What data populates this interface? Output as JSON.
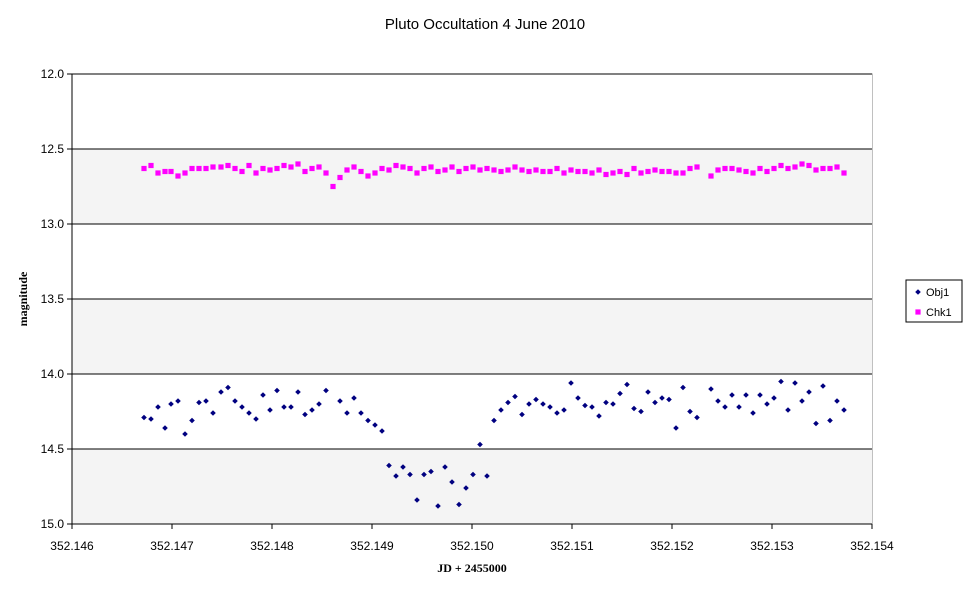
{
  "chart_data": {
    "type": "scatter",
    "title": "Pluto Occultation 4 June 2010",
    "xlabel": "JD + 2455000",
    "ylabel": "magnitude",
    "xlim": [
      352.146,
      352.154
    ],
    "ylim": [
      12.0,
      15.0
    ],
    "y_inverted": true,
    "x_ticks": [
      "352.146",
      "352.147",
      "352.148",
      "352.149",
      "352.150",
      "352.151",
      "352.152",
      "352.153",
      "352.154"
    ],
    "x_tick_values": [
      352.146,
      352.147,
      352.148,
      352.149,
      352.15,
      352.151,
      352.152,
      352.153,
      352.154
    ],
    "y_ticks": [
      "12.0",
      "12.5",
      "13.0",
      "13.5",
      "14.0",
      "14.5",
      "15.0"
    ],
    "y_tick_values": [
      12.0,
      12.5,
      13.0,
      13.5,
      14.0,
      14.5,
      15.0
    ],
    "grid": "horizontal",
    "legend_position": "right",
    "series": [
      {
        "name": "Obj1",
        "color": "#000080",
        "marker": "diamond",
        "points": [
          [
            352.14672,
            14.29
          ],
          [
            352.14679,
            14.3
          ],
          [
            352.14686,
            14.22
          ],
          [
            352.14693,
            14.36
          ],
          [
            352.14699,
            14.2
          ],
          [
            352.14706,
            14.18
          ],
          [
            352.14713,
            14.4
          ],
          [
            352.1472,
            14.31
          ],
          [
            352.14727,
            14.19
          ],
          [
            352.14734,
            14.18
          ],
          [
            352.14741,
            14.26
          ],
          [
            352.14749,
            14.12
          ],
          [
            352.14756,
            14.09
          ],
          [
            352.14763,
            14.18
          ],
          [
            352.1477,
            14.22
          ],
          [
            352.14777,
            14.26
          ],
          [
            352.14784,
            14.3
          ],
          [
            352.14791,
            14.14
          ],
          [
            352.14798,
            14.24
          ],
          [
            352.14805,
            14.11
          ],
          [
            352.14812,
            14.22
          ],
          [
            352.14819,
            14.22
          ],
          [
            352.14826,
            14.12
          ],
          [
            352.14833,
            14.27
          ],
          [
            352.1484,
            14.24
          ],
          [
            352.14847,
            14.2
          ],
          [
            352.14854,
            14.11
          ],
          [
            352.14868,
            14.18
          ],
          [
            352.14875,
            14.26
          ],
          [
            352.14882,
            14.16
          ],
          [
            352.14889,
            14.26
          ],
          [
            352.14896,
            14.31
          ],
          [
            352.14903,
            14.34
          ],
          [
            352.1491,
            14.38
          ],
          [
            352.14917,
            14.61
          ],
          [
            352.14924,
            14.68
          ],
          [
            352.14931,
            14.62
          ],
          [
            352.14938,
            14.67
          ],
          [
            352.14945,
            14.84
          ],
          [
            352.14952,
            14.67
          ],
          [
            352.14959,
            14.65
          ],
          [
            352.14966,
            14.88
          ],
          [
            352.14973,
            14.62
          ],
          [
            352.1498,
            14.72
          ],
          [
            352.14987,
            14.87
          ],
          [
            352.14994,
            14.76
          ],
          [
            352.15001,
            14.67
          ],
          [
            352.15008,
            14.47
          ],
          [
            352.15015,
            14.68
          ],
          [
            352.15022,
            14.31
          ],
          [
            352.15029,
            14.24
          ],
          [
            352.15036,
            14.19
          ],
          [
            352.15043,
            14.15
          ],
          [
            352.1505,
            14.27
          ],
          [
            352.15057,
            14.2
          ],
          [
            352.15064,
            14.17
          ],
          [
            352.15071,
            14.2
          ],
          [
            352.15078,
            14.22
          ],
          [
            352.15085,
            14.26
          ],
          [
            352.15092,
            14.24
          ],
          [
            352.15099,
            14.06
          ],
          [
            352.15106,
            14.16
          ],
          [
            352.15113,
            14.21
          ],
          [
            352.1512,
            14.22
          ],
          [
            352.15127,
            14.28
          ],
          [
            352.15134,
            14.19
          ],
          [
            352.15141,
            14.2
          ],
          [
            352.15148,
            14.13
          ],
          [
            352.15155,
            14.07
          ],
          [
            352.15162,
            14.23
          ],
          [
            352.15169,
            14.25
          ],
          [
            352.15176,
            14.12
          ],
          [
            352.15183,
            14.19
          ],
          [
            352.1519,
            14.16
          ],
          [
            352.15197,
            14.17
          ],
          [
            352.15204,
            14.36
          ],
          [
            352.15211,
            14.09
          ],
          [
            352.15218,
            14.25
          ],
          [
            352.15225,
            14.29
          ],
          [
            352.15239,
            14.1
          ],
          [
            352.15246,
            14.18
          ],
          [
            352.15253,
            14.22
          ],
          [
            352.1526,
            14.14
          ],
          [
            352.15267,
            14.22
          ],
          [
            352.15274,
            14.14
          ],
          [
            352.15281,
            14.26
          ],
          [
            352.15288,
            14.14
          ],
          [
            352.15295,
            14.2
          ],
          [
            352.15302,
            14.16
          ],
          [
            352.15309,
            14.05
          ],
          [
            352.15316,
            14.24
          ],
          [
            352.15323,
            14.06
          ],
          [
            352.1533,
            14.18
          ],
          [
            352.15337,
            14.12
          ],
          [
            352.15344,
            14.33
          ],
          [
            352.15351,
            14.08
          ],
          [
            352.15358,
            14.31
          ],
          [
            352.15365,
            14.18
          ],
          [
            352.15372,
            14.24
          ]
        ]
      },
      {
        "name": "Chk1",
        "color": "#ff00ff",
        "marker": "square",
        "points": [
          [
            352.14672,
            12.63
          ],
          [
            352.14679,
            12.61
          ],
          [
            352.14686,
            12.66
          ],
          [
            352.14693,
            12.65
          ],
          [
            352.14699,
            12.65
          ],
          [
            352.14706,
            12.68
          ],
          [
            352.14713,
            12.66
          ],
          [
            352.1472,
            12.63
          ],
          [
            352.14727,
            12.63
          ],
          [
            352.14734,
            12.63
          ],
          [
            352.14741,
            12.62
          ],
          [
            352.14749,
            12.62
          ],
          [
            352.14756,
            12.61
          ],
          [
            352.14763,
            12.63
          ],
          [
            352.1477,
            12.65
          ],
          [
            352.14777,
            12.61
          ],
          [
            352.14784,
            12.66
          ],
          [
            352.14791,
            12.63
          ],
          [
            352.14798,
            12.64
          ],
          [
            352.14805,
            12.63
          ],
          [
            352.14812,
            12.61
          ],
          [
            352.14819,
            12.62
          ],
          [
            352.14826,
            12.6
          ],
          [
            352.14833,
            12.65
          ],
          [
            352.1484,
            12.63
          ],
          [
            352.14847,
            12.62
          ],
          [
            352.14854,
            12.66
          ],
          [
            352.14861,
            12.75
          ],
          [
            352.14868,
            12.69
          ],
          [
            352.14875,
            12.64
          ],
          [
            352.14882,
            12.62
          ],
          [
            352.14889,
            12.65
          ],
          [
            352.14896,
            12.68
          ],
          [
            352.14903,
            12.66
          ],
          [
            352.1491,
            12.63
          ],
          [
            352.14917,
            12.64
          ],
          [
            352.14924,
            12.61
          ],
          [
            352.14931,
            12.62
          ],
          [
            352.14938,
            12.63
          ],
          [
            352.14945,
            12.66
          ],
          [
            352.14952,
            12.63
          ],
          [
            352.14959,
            12.62
          ],
          [
            352.14966,
            12.65
          ],
          [
            352.14973,
            12.64
          ],
          [
            352.1498,
            12.62
          ],
          [
            352.14987,
            12.65
          ],
          [
            352.14994,
            12.63
          ],
          [
            352.15001,
            12.62
          ],
          [
            352.15008,
            12.64
          ],
          [
            352.15015,
            12.63
          ],
          [
            352.15022,
            12.64
          ],
          [
            352.15029,
            12.65
          ],
          [
            352.15036,
            12.64
          ],
          [
            352.15043,
            12.62
          ],
          [
            352.1505,
            12.64
          ],
          [
            352.15057,
            12.65
          ],
          [
            352.15064,
            12.64
          ],
          [
            352.15071,
            12.65
          ],
          [
            352.15078,
            12.65
          ],
          [
            352.15085,
            12.63
          ],
          [
            352.15092,
            12.66
          ],
          [
            352.15099,
            12.64
          ],
          [
            352.15106,
            12.65
          ],
          [
            352.15113,
            12.65
          ],
          [
            352.1512,
            12.66
          ],
          [
            352.15127,
            12.64
          ],
          [
            352.15134,
            12.67
          ],
          [
            352.15141,
            12.66
          ],
          [
            352.15148,
            12.65
          ],
          [
            352.15155,
            12.67
          ],
          [
            352.15162,
            12.63
          ],
          [
            352.15169,
            12.66
          ],
          [
            352.15176,
            12.65
          ],
          [
            352.15183,
            12.64
          ],
          [
            352.1519,
            12.65
          ],
          [
            352.15197,
            12.65
          ],
          [
            352.15204,
            12.66
          ],
          [
            352.15211,
            12.66
          ],
          [
            352.15218,
            12.63
          ],
          [
            352.15225,
            12.62
          ],
          [
            352.15239,
            12.68
          ],
          [
            352.15246,
            12.64
          ],
          [
            352.15253,
            12.63
          ],
          [
            352.1526,
            12.63
          ],
          [
            352.15267,
            12.64
          ],
          [
            352.15274,
            12.65
          ],
          [
            352.15281,
            12.66
          ],
          [
            352.15288,
            12.63
          ],
          [
            352.15295,
            12.65
          ],
          [
            352.15302,
            12.63
          ],
          [
            352.15309,
            12.61
          ],
          [
            352.15316,
            12.63
          ],
          [
            352.15323,
            12.62
          ],
          [
            352.1533,
            12.6
          ],
          [
            352.15337,
            12.61
          ],
          [
            352.15344,
            12.64
          ],
          [
            352.15351,
            12.63
          ],
          [
            352.15358,
            12.63
          ],
          [
            352.15365,
            12.62
          ],
          [
            352.15372,
            12.66
          ]
        ]
      }
    ]
  }
}
